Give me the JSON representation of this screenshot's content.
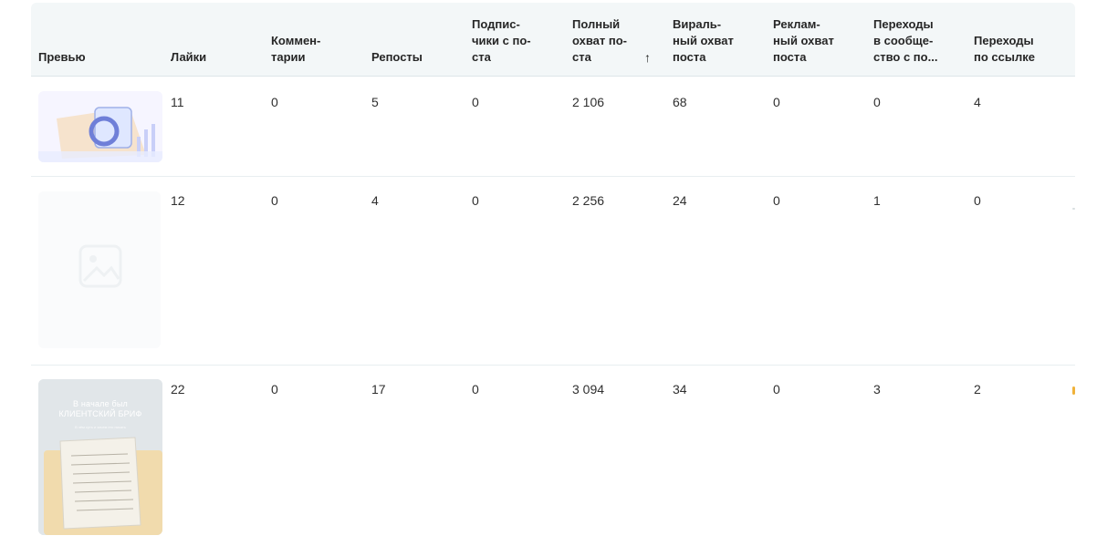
{
  "table": {
    "columns": [
      {
        "label": "Превью"
      },
      {
        "label": "Лайки"
      },
      {
        "label": "Коммен-\nтарии"
      },
      {
        "label": "Репосты"
      },
      {
        "label": "Подпис-\nчики с по-\nста"
      },
      {
        "label": "Полный\nохват по-\nста"
      },
      {
        "label": "Ви­раль-\nный охват\nпоста"
      },
      {
        "label": "Реклам-\nный охват\nпоста"
      },
      {
        "label": "Переходы\nв сообще-\nство с по..."
      },
      {
        "label": "Переходы\nпо ссылке"
      }
    ],
    "sort": {
      "column": "Полный охват поста",
      "direction": "ascending",
      "icon": "arrow-up-icon",
      "glyph": "↑"
    },
    "rows": [
      {
        "preview_icon": "post-preview-image-icon",
        "likes": "11",
        "comments": "0",
        "reposts": "5",
        "subscribers": "0",
        "full_reach": "2 106",
        "viral_reach": "68",
        "ad_reach": "0",
        "community_clicks": "0",
        "link_clicks": "4"
      },
      {
        "preview_icon": "image-placeholder-icon",
        "likes": "12",
        "comments": "0",
        "reposts": "4",
        "subscribers": "0",
        "full_reach": "2 256",
        "viral_reach": "24",
        "ad_reach": "0",
        "community_clicks": "1",
        "link_clicks": "0"
      },
      {
        "preview_icon": "post-preview-image-icon",
        "preview_title": "В начале был\nКЛИЕНТСКИЙ БРИФ",
        "preview_subtitle": "В чём суть и зачем его писать",
        "likes": "22",
        "comments": "0",
        "reposts": "17",
        "subscribers": "0",
        "full_reach": "3 094",
        "viral_reach": "34",
        "ad_reach": "0",
        "community_clicks": "3",
        "link_clicks": "2"
      }
    ]
  },
  "colors": {
    "header_bg": "#f3f7f8",
    "row_divider": "#e8eef0",
    "text": "#2f2f2f",
    "accent_edge": "#f0b23a"
  }
}
